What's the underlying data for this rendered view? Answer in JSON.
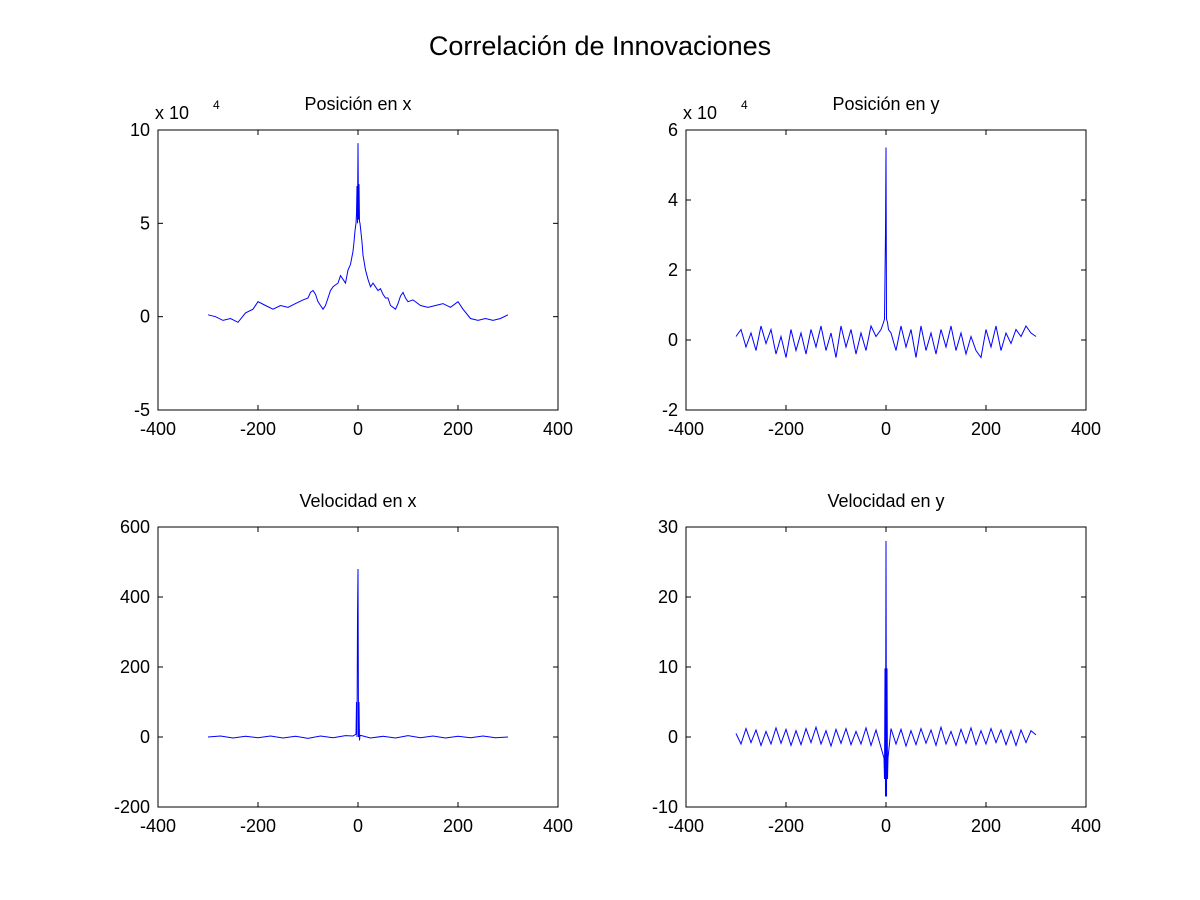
{
  "figure_title": "Correlación de Innovaciones",
  "line_color": "#0000ff",
  "chart_data": [
    {
      "type": "line",
      "title": "Posición en x",
      "multiplier_base": "x 10",
      "multiplier_exponent": "4",
      "xlim": [
        -400,
        400
      ],
      "ylim": [
        -5,
        10
      ],
      "xticks": [
        -400,
        -200,
        0,
        200,
        400
      ],
      "yticks": [
        -5,
        0,
        5,
        10
      ],
      "xtick_labels": [
        "-400",
        "-200",
        "0",
        "200",
        "400"
      ],
      "ytick_labels": [
        "-5",
        "0",
        "5",
        "10"
      ],
      "series": [
        {
          "x": [
            -300,
            -285,
            -270,
            -255,
            -240,
            -225,
            -210,
            -200,
            -185,
            -170,
            -155,
            -140,
            -125,
            -110,
            -100,
            -95,
            -90,
            -85,
            -80,
            -75,
            -70,
            -65,
            -60,
            -55,
            -50,
            -45,
            -40,
            -35,
            -30,
            -25,
            -20,
            -15,
            -10,
            -8,
            -6,
            -4,
            -3,
            -2,
            -1,
            0,
            1,
            2,
            3,
            4,
            6,
            8,
            10,
            15,
            20,
            25,
            30,
            35,
            40,
            45,
            50,
            55,
            60,
            65,
            70,
            75,
            80,
            85,
            90,
            95,
            100,
            110,
            125,
            140,
            155,
            170,
            185,
            200,
            210,
            225,
            240,
            255,
            270,
            285,
            300
          ],
          "y": [
            0.1,
            0.0,
            -0.2,
            -0.1,
            -0.3,
            0.2,
            0.4,
            0.8,
            0.6,
            0.4,
            0.6,
            0.5,
            0.7,
            0.9,
            1.0,
            1.3,
            1.4,
            1.2,
            0.8,
            0.6,
            0.4,
            0.6,
            1.0,
            1.4,
            1.6,
            1.7,
            1.8,
            2.2,
            2.0,
            1.8,
            2.5,
            2.8,
            3.5,
            4.0,
            4.6,
            5.0,
            5.5,
            7.0,
            5.0,
            9.3,
            5.2,
            7.1,
            5.1,
            5.0,
            4.5,
            4.0,
            3.3,
            2.5,
            2.0,
            1.6,
            1.8,
            1.6,
            1.4,
            1.5,
            1.2,
            1.0,
            1.0,
            0.6,
            0.5,
            0.4,
            0.7,
            1.1,
            1.3,
            1.0,
            0.8,
            0.9,
            0.6,
            0.5,
            0.6,
            0.7,
            0.5,
            0.8,
            0.4,
            -0.1,
            -0.2,
            -0.1,
            -0.2,
            -0.1,
            0.1
          ]
        }
      ]
    },
    {
      "type": "line",
      "title": "Posición en y",
      "multiplier_base": "x 10",
      "multiplier_exponent": "4",
      "xlim": [
        -400,
        400
      ],
      "ylim": [
        -2,
        6
      ],
      "xticks": [
        -400,
        -200,
        0,
        200,
        400
      ],
      "yticks": [
        -2,
        0,
        2,
        4,
        6
      ],
      "xtick_labels": [
        "-400",
        "-200",
        "0",
        "200",
        "400"
      ],
      "ytick_labels": [
        "-2",
        "0",
        "2",
        "4",
        "6"
      ],
      "series": [
        {
          "x": [
            -300,
            -290,
            -280,
            -270,
            -260,
            -250,
            -240,
            -230,
            -220,
            -210,
            -200,
            -190,
            -180,
            -170,
            -160,
            -150,
            -140,
            -130,
            -120,
            -110,
            -100,
            -90,
            -80,
            -70,
            -60,
            -50,
            -40,
            -30,
            -20,
            -10,
            -5,
            -3,
            -1,
            0,
            1,
            3,
            5,
            10,
            20,
            30,
            40,
            50,
            60,
            70,
            80,
            90,
            100,
            110,
            120,
            130,
            140,
            150,
            160,
            170,
            180,
            190,
            200,
            210,
            220,
            230,
            240,
            250,
            260,
            270,
            280,
            290,
            300
          ],
          "y": [
            0.1,
            0.3,
            -0.2,
            0.2,
            -0.3,
            0.4,
            -0.1,
            0.3,
            -0.4,
            0.1,
            -0.5,
            0.3,
            -0.3,
            0.2,
            -0.4,
            0.3,
            -0.2,
            0.4,
            -0.3,
            0.2,
            -0.5,
            0.4,
            -0.2,
            0.3,
            -0.4,
            0.2,
            -0.3,
            0.4,
            0.1,
            0.3,
            0.5,
            0.6,
            3.1,
            5.5,
            0.6,
            0.5,
            0.3,
            0.2,
            -0.3,
            0.4,
            -0.2,
            0.3,
            -0.5,
            0.4,
            -0.3,
            0.2,
            -0.4,
            0.3,
            -0.2,
            0.4,
            -0.3,
            0.2,
            -0.4,
            0.1,
            -0.3,
            -0.5,
            0.3,
            -0.2,
            0.4,
            -0.3,
            0.2,
            -0.1,
            0.3,
            0.1,
            0.4,
            0.2,
            0.1
          ]
        }
      ]
    },
    {
      "type": "line",
      "title": "Velocidad en x",
      "multiplier_base": "",
      "multiplier_exponent": "",
      "xlim": [
        -400,
        400
      ],
      "ylim": [
        -200,
        600
      ],
      "xticks": [
        -400,
        -200,
        0,
        200,
        400
      ],
      "yticks": [
        -200,
        0,
        200,
        400,
        600
      ],
      "xtick_labels": [
        "-400",
        "-200",
        "0",
        "200",
        "400"
      ],
      "ytick_labels": [
        "-200",
        "0",
        "200",
        "400",
        "600"
      ],
      "series": [
        {
          "x": [
            -300,
            -275,
            -250,
            -225,
            -200,
            -175,
            -150,
            -125,
            -100,
            -75,
            -50,
            -25,
            -10,
            -4,
            -3,
            -2,
            -1,
            0,
            1,
            2,
            3,
            4,
            10,
            25,
            50,
            75,
            100,
            125,
            150,
            175,
            200,
            225,
            250,
            275,
            300
          ],
          "y": [
            0,
            3,
            -3,
            2,
            -2,
            3,
            -3,
            2,
            -4,
            3,
            -2,
            4,
            3,
            8,
            100,
            0,
            340,
            480,
            0,
            100,
            -10,
            5,
            3,
            -3,
            2,
            -3,
            4,
            -2,
            3,
            -3,
            2,
            -2,
            3,
            -2,
            0
          ]
        }
      ]
    },
    {
      "type": "line",
      "title": "Velocidad en y",
      "multiplier_base": "",
      "multiplier_exponent": "",
      "xlim": [
        -400,
        400
      ],
      "ylim": [
        -10,
        30
      ],
      "xticks": [
        -400,
        -200,
        0,
        200,
        400
      ],
      "yticks": [
        -10,
        0,
        10,
        20,
        30
      ],
      "xtick_labels": [
        "-400",
        "-200",
        "0",
        "200",
        "400"
      ],
      "ytick_labels": [
        "-10",
        "0",
        "10",
        "20",
        "30"
      ],
      "series": [
        {
          "x": [
            -300,
            -290,
            -280,
            -270,
            -260,
            -250,
            -240,
            -230,
            -220,
            -210,
            -200,
            -190,
            -180,
            -170,
            -160,
            -150,
            -140,
            -130,
            -120,
            -110,
            -100,
            -90,
            -80,
            -70,
            -60,
            -50,
            -40,
            -30,
            -20,
            -10,
            -4,
            -3,
            -2,
            -1,
            0,
            1,
            2,
            3,
            4,
            10,
            20,
            30,
            40,
            50,
            60,
            70,
            80,
            90,
            100,
            110,
            120,
            130,
            140,
            150,
            160,
            170,
            180,
            190,
            200,
            210,
            220,
            230,
            240,
            250,
            260,
            270,
            280,
            290,
            300
          ],
          "y": [
            0.5,
            -1.0,
            1.2,
            -0.8,
            1.0,
            -1.2,
            0.8,
            -1.0,
            1.3,
            -0.9,
            1.1,
            -1.2,
            0.9,
            -1.1,
            1.2,
            -0.8,
            1.4,
            -1.0,
            0.9,
            -1.3,
            1.1,
            -0.9,
            1.2,
            -1.1,
            0.8,
            -1.0,
            1.3,
            -1.2,
            1.0,
            -1.5,
            -3.0,
            -6.0,
            9.8,
            -8.5,
            28.0,
            -8.5,
            9.8,
            -6.0,
            -3.0,
            1.2,
            -1.0,
            1.1,
            -1.3,
            0.9,
            -1.1,
            1.2,
            -0.9,
            1.0,
            -1.2,
            1.4,
            -1.0,
            0.8,
            -1.2,
            1.1,
            -0.9,
            1.3,
            -1.1,
            0.9,
            -1.0,
            1.2,
            -0.8,
            1.0,
            -1.1,
            0.9,
            -1.2,
            1.0,
            -0.8,
            0.9,
            0.3
          ]
        }
      ]
    }
  ]
}
